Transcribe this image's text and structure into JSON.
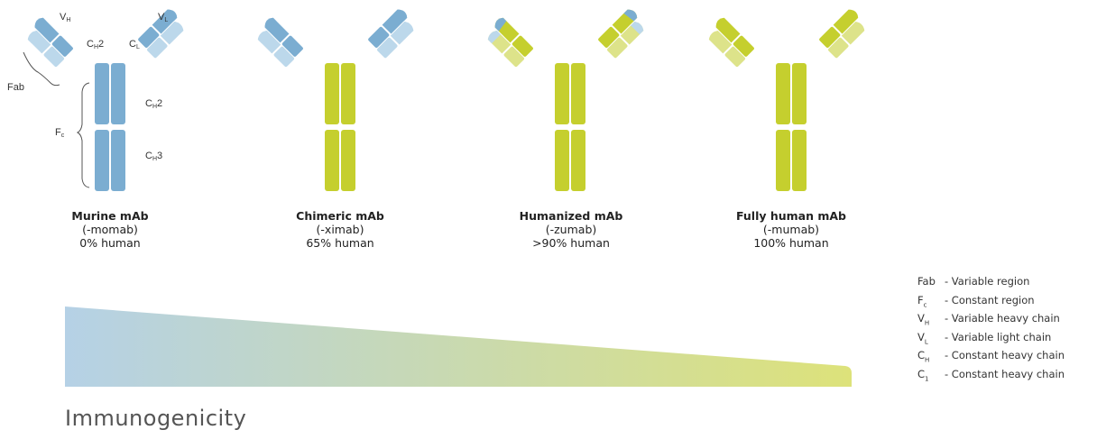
{
  "colors": {
    "murine_dark": "#7BADD1",
    "murine_light": "#BCD8EB",
    "human_dark": "#C5CF2E",
    "human_light": "#DDE38A",
    "gradient_start": "#B5D1E6",
    "gradient_end": "#DDE27A"
  },
  "domain_labels": {
    "vh": {
      "base": "V",
      "sub": "H"
    },
    "vl": {
      "base": "V",
      "sub": "L"
    },
    "ch2_arm": {
      "base": "C",
      "sub": "H",
      "suffix": "2"
    },
    "cl": {
      "base": "C",
      "sub": "L"
    },
    "fab": "Fab",
    "fc": {
      "base": "F",
      "sub": "c"
    },
    "ch2": {
      "base": "C",
      "sub": "H",
      "suffix": "2"
    },
    "ch3": {
      "base": "C",
      "sub": "H",
      "suffix": "3"
    }
  },
  "antibodies": [
    {
      "title": "Murine mAb",
      "suffix": "(-momab)",
      "human": "0% human",
      "type": "murine"
    },
    {
      "title": "Chimeric mAb",
      "suffix": "(-ximab)",
      "human": "65% human",
      "type": "chimeric"
    },
    {
      "title": "Humanized mAb",
      "suffix": "(-zumab)",
      "human": ">90% human",
      "type": "humanized"
    },
    {
      "title": "Fully human mAb",
      "suffix": "(-mumab)",
      "human": "100% human",
      "type": "human"
    }
  ],
  "legend": [
    {
      "abbr": "Fab",
      "abbr_sub": "",
      "text": "- Variable region"
    },
    {
      "abbr": "F",
      "abbr_sub": "c",
      "text": "- Constant region"
    },
    {
      "abbr": "V",
      "abbr_sub": "H",
      "text": "- Variable heavy chain"
    },
    {
      "abbr": "V",
      "abbr_sub": "L",
      "text": "- Variable light chain"
    },
    {
      "abbr": "C",
      "abbr_sub": "H",
      "text": "- Constant heavy chain"
    },
    {
      "abbr": "C",
      "abbr_sub": "1",
      "text": "- Constant heavy chain"
    }
  ],
  "axis_label": "Immunogenicity"
}
